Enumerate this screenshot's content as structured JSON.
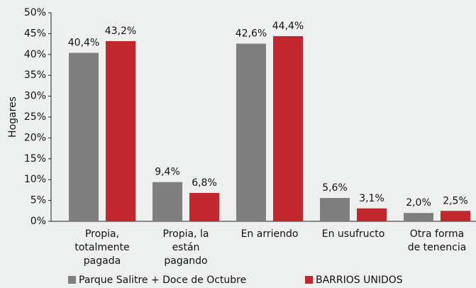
{
  "chart_data": {
    "type": "bar",
    "y_label": "Hogares",
    "categories": [
      [
        "Propia,",
        "totalmente",
        "pagada"
      ],
      [
        "Propia, la",
        "están",
        "pagando"
      ],
      [
        "En arriendo"
      ],
      [
        "En usufructo"
      ],
      [
        "Otra forma",
        "de tenencia"
      ]
    ],
    "series": [
      {
        "name": "Parque Salitre + Doce de Octubre",
        "color": "#7f7f7f",
        "values": [
          40.4,
          9.4,
          42.6,
          5.6,
          2.0
        ],
        "value_labels": [
          "40,4%",
          "9,4%",
          "42,6%",
          "5,6%",
          "2,0%"
        ]
      },
      {
        "name": "BARRIOS UNIDOS",
        "color": "#c1272d",
        "values": [
          43.2,
          6.8,
          44.4,
          3.1,
          2.5
        ],
        "value_labels": [
          "43,2%",
          "6,8%",
          "44,4%",
          "3,1%",
          "2,5%"
        ]
      }
    ],
    "ylim": [
      0,
      50
    ],
    "yticks": [
      {
        "value": 0,
        "label": "0%"
      },
      {
        "value": 5,
        "label": "5%"
      },
      {
        "value": 10,
        "label": "10%"
      },
      {
        "value": 15,
        "label": "15%"
      },
      {
        "value": 20,
        "label": "20%"
      },
      {
        "value": 25,
        "label": "25%"
      },
      {
        "value": 30,
        "label": "30%"
      },
      {
        "value": 35,
        "label": "35%"
      },
      {
        "value": 40,
        "label": "40%"
      },
      {
        "value": 45,
        "label": "45%"
      },
      {
        "value": 50,
        "label": "50%"
      }
    ],
    "grid": false
  }
}
